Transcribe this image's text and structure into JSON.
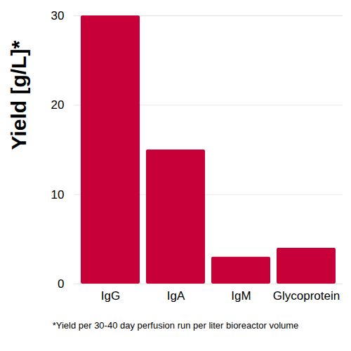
{
  "chart_data": {
    "type": "bar",
    "categories": [
      "IgG",
      "IgA",
      "IgM",
      "Glycoprotein"
    ],
    "values": [
      30,
      15,
      3,
      4
    ],
    "color": "#c70039",
    "ylabel": "Yield [g/L]*",
    "caption": "*Yield per 30-40 day perfusion run per liter bioreactor volume",
    "ylim": [
      0,
      30
    ],
    "yticks": [
      0,
      10,
      20,
      30
    ],
    "grid": true
  }
}
